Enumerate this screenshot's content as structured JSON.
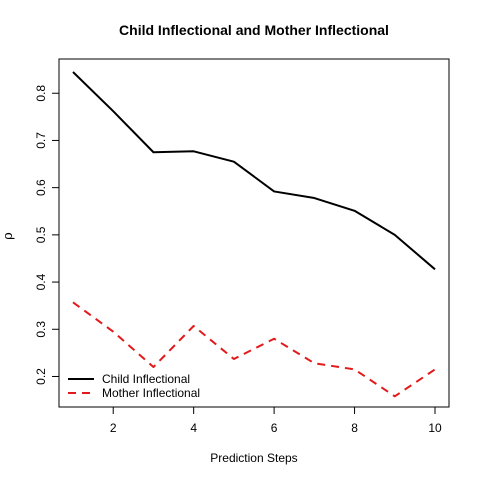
{
  "chart_data": {
    "type": "line",
    "title": "Child Inflectional and Mother Inflectional",
    "xlabel": "Prediction Steps",
    "ylabel": "ρ",
    "x": [
      1,
      2,
      3,
      4,
      5,
      6,
      7,
      8,
      9,
      10
    ],
    "xlim": [
      1,
      10
    ],
    "ylim": [
      0.165,
      0.845
    ],
    "xticks": [
      2,
      4,
      6,
      8,
      10
    ],
    "yticks": [
      0.2,
      0.3,
      0.4,
      0.5,
      0.6,
      0.7,
      0.8
    ],
    "grid": false,
    "legend_position": "bottom-left",
    "series": [
      {
        "name": "Child Inflectional",
        "color": "#000000",
        "dash": "solid",
        "values": [
          0.845,
          0.762,
          0.675,
          0.677,
          0.655,
          0.592,
          0.578,
          0.551,
          0.5,
          0.427
        ]
      },
      {
        "name": "Mother Inflectional",
        "color": "#e31a1c",
        "dash": "dashed",
        "values": [
          0.357,
          0.295,
          0.22,
          0.307,
          0.237,
          0.28,
          0.228,
          0.215,
          0.158,
          0.215
        ]
      }
    ]
  }
}
